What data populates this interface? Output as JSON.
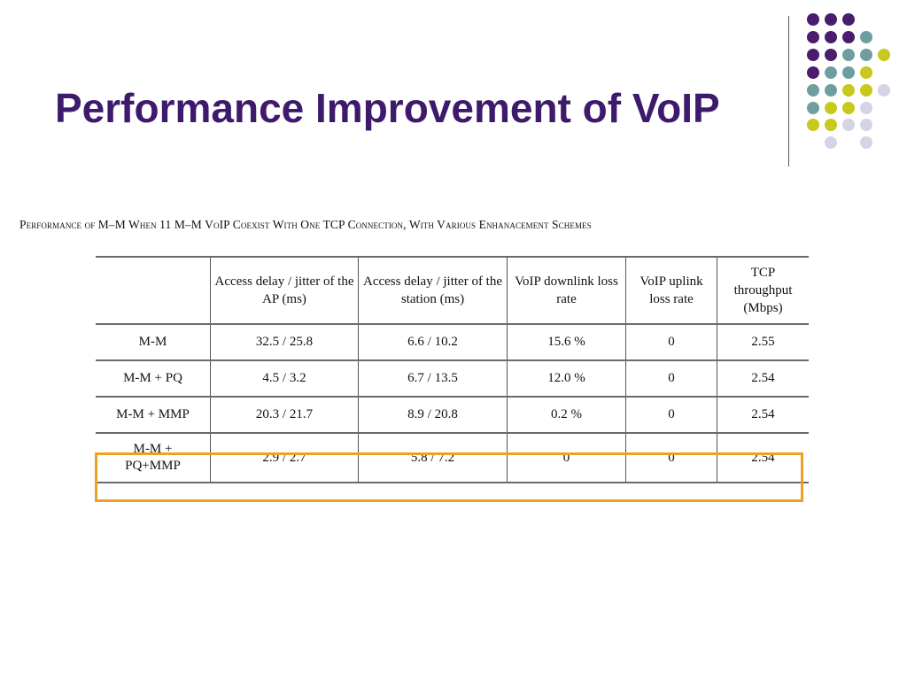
{
  "slide": {
    "title": "Performance Improvement of VoIP",
    "colors": {
      "title": "#3d1a6b",
      "highlight": "#f0a020",
      "dot_purple": "#4a1c6e",
      "dot_teal": "#6f9e9e",
      "dot_olive": "#c8c81e",
      "dot_lavender": "#d4d4e6"
    }
  },
  "table": {
    "caption": "Performance of M–M When 11 M–M VoIP Coexist With One TCP Connection, With Various Enhanacement Schemes",
    "headers": [
      "",
      "Access delay / jitter of the AP (ms)",
      "Access delay / jitter of the station (ms)",
      "VoIP downlink loss rate",
      "VoIP uplink loss rate",
      "TCP throughput (Mbps)"
    ],
    "rows": [
      [
        "M-M",
        "32.5 / 25.8",
        "6.6 / 10.2",
        "15.6 %",
        "0",
        "2.55"
      ],
      [
        "M-M + PQ",
        "4.5 / 3.2",
        "6.7 / 13.5",
        "12.0 %",
        "0",
        "2.54"
      ],
      [
        "M-M + MMP",
        "20.3 / 21.7",
        "8.9 / 20.8",
        "0.2 %",
        "0",
        "2.54"
      ],
      [
        "M-M + PQ+MMP",
        "2.9 / 2.7",
        "5.8 / 7.2",
        "0",
        "0",
        "2.54"
      ]
    ],
    "highlighted_row": "M-M + PQ+MMP"
  }
}
